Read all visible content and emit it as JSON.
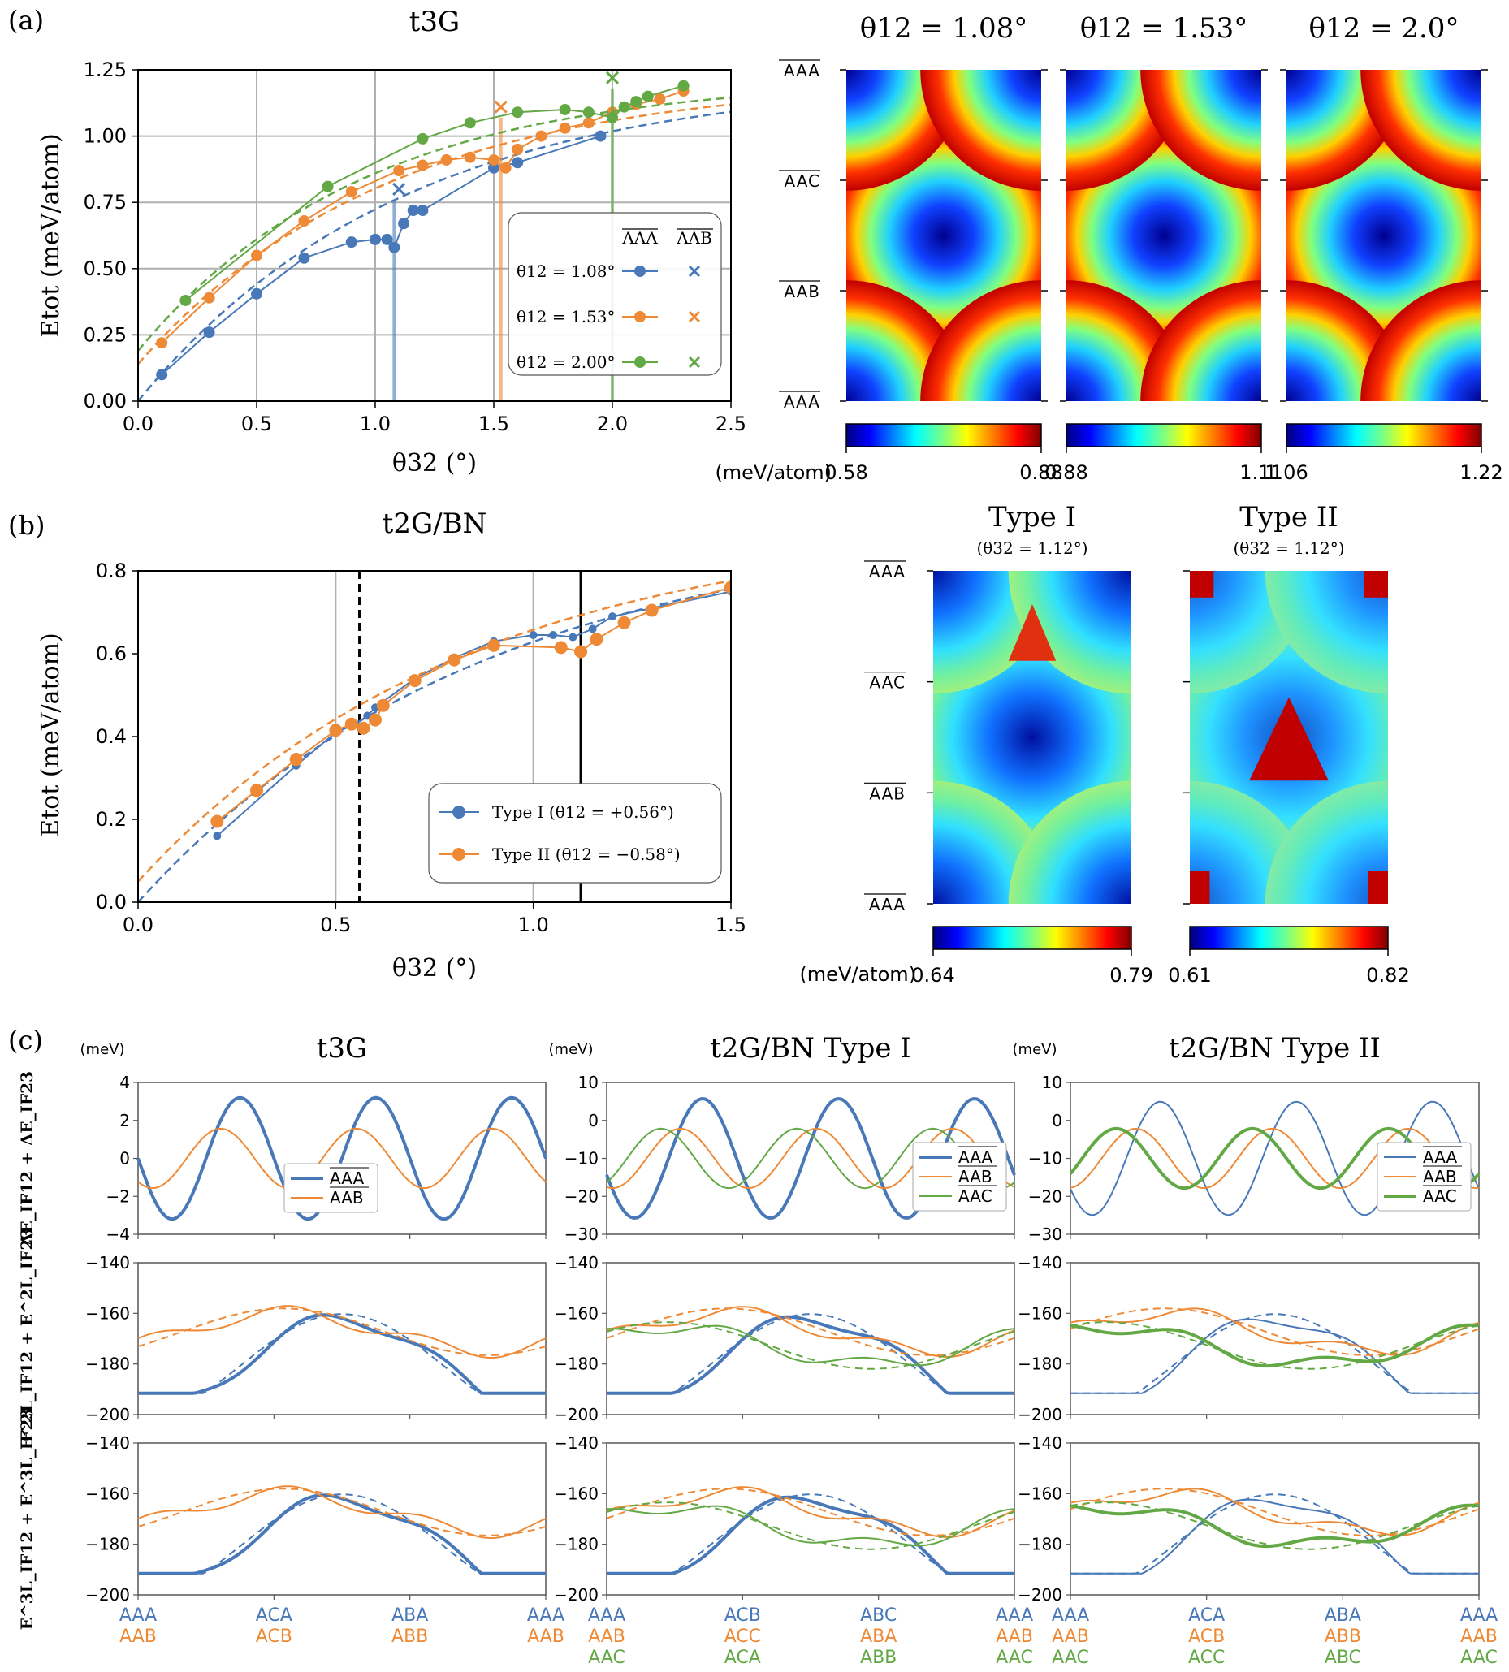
{
  "colors": {
    "blue": "#4878b8",
    "orange": "#ee8a36",
    "green": "#62a844"
  },
  "panel_labels": {
    "a": "(a)",
    "b": "(b)",
    "c": "(c)"
  },
  "chart_data": [
    {
      "id": "a_line",
      "type": "line",
      "title": "t3G",
      "xlabel": "θ32 (°)",
      "ylabel": "Etot (meV/atom)",
      "xlim": [
        0,
        2.5
      ],
      "ylim": [
        0,
        1.25
      ],
      "xticks": [
        "0.0",
        "0.5",
        "1.0",
        "1.5",
        "2.0",
        "2.5"
      ],
      "yticks": [
        "0.00",
        "0.25",
        "0.50",
        "0.75",
        "1.00",
        "1.25"
      ],
      "grid": true,
      "legend_header": [
        "AAA",
        "AAB"
      ],
      "legend": [
        "θ12 = 1.08°",
        "θ12 = 1.53°",
        "θ12 = 2.00°"
      ],
      "series": [
        {
          "name": "θ12 = 1.08°",
          "color": "blue",
          "x": [
            0.1,
            0.3,
            0.5,
            0.7,
            0.9,
            1.0,
            1.05,
            1.08,
            1.12,
            1.16,
            1.2,
            1.5,
            1.6,
            1.95
          ],
          "y": [
            0.1,
            0.26,
            0.405,
            0.54,
            0.6,
            0.61,
            0.61,
            0.58,
            0.67,
            0.72,
            0.72,
            0.88,
            0.9,
            1.0
          ],
          "cross": [
            1.1,
            0.8
          ],
          "vline": 1.08
        },
        {
          "name": "θ12 = 1.53°",
          "color": "orange",
          "x": [
            0.1,
            0.3,
            0.5,
            0.7,
            0.9,
            1.1,
            1.2,
            1.3,
            1.4,
            1.5,
            1.55,
            1.6,
            1.7,
            1.8,
            1.9,
            2.0,
            2.1,
            2.2,
            2.3
          ],
          "y": [
            0.22,
            0.39,
            0.55,
            0.68,
            0.79,
            0.87,
            0.89,
            0.91,
            0.92,
            0.91,
            0.88,
            0.95,
            1.0,
            1.03,
            1.05,
            1.09,
            1.12,
            1.14,
            1.17
          ],
          "cross": [
            1.53,
            1.11
          ],
          "vline": 1.53
        },
        {
          "name": "θ12 = 2.00°",
          "color": "green",
          "x": [
            0.2,
            0.8,
            1.2,
            1.4,
            1.6,
            1.8,
            1.9,
            2.0,
            2.05,
            2.1,
            2.15,
            2.3
          ],
          "y": [
            0.38,
            0.81,
            0.99,
            1.05,
            1.09,
            1.1,
            1.09,
            1.07,
            1.11,
            1.13,
            1.15,
            1.19
          ],
          "cross": [
            2.0,
            1.22
          ],
          "vline": 2.0
        }
      ]
    },
    {
      "id": "a_maps",
      "type": "heatmap",
      "titles": [
        "θ12 = 1.08°",
        "θ12 = 1.53°",
        "θ12 = 2.0°"
      ],
      "ylabels": [
        "AAA",
        "AAC",
        "AAB",
        "AAA"
      ],
      "cbar_unit": "(meV/atom)",
      "cbar_ranges": [
        [
          0.58,
          0.88
        ],
        [
          0.88,
          1.11
        ],
        [
          1.06,
          1.22
        ]
      ],
      "cbar_labels": [
        [
          "0.58",
          "0.88"
        ],
        [
          "0.88",
          "1.11"
        ],
        [
          "1.06",
          "1.22"
        ]
      ]
    },
    {
      "id": "b_line",
      "type": "line",
      "title": "t2G/BN",
      "xlabel": "θ32 (°)",
      "ylabel": "Etot (meV/atom)",
      "xlim": [
        0,
        1.5
      ],
      "ylim": [
        0,
        0.8
      ],
      "xticks": [
        "0.0",
        "0.5",
        "1.0",
        "1.5"
      ],
      "yticks": [
        "0.0",
        "0.2",
        "0.4",
        "0.6",
        "0.8"
      ],
      "grid": true,
      "legend": [
        "Type I (θ12 = +0.56°)",
        "Type II (θ12 = −0.58°)"
      ],
      "series": [
        {
          "name": "Type I (θ12 = +0.56°)",
          "color": "blue",
          "x": [
            0.2,
            0.4,
            0.5,
            0.55,
            0.58,
            0.6,
            0.7,
            0.8,
            0.9,
            1.0,
            1.05,
            1.1,
            1.15,
            1.2,
            1.3,
            1.5
          ],
          "y": [
            0.16,
            0.33,
            0.41,
            0.43,
            0.45,
            0.47,
            0.54,
            0.59,
            0.63,
            0.645,
            0.645,
            0.64,
            0.66,
            0.69,
            0.71,
            0.75
          ]
        },
        {
          "name": "Type II (θ12 = −0.58°)",
          "color": "orange",
          "x": [
            0.2,
            0.3,
            0.4,
            0.5,
            0.54,
            0.57,
            0.6,
            0.62,
            0.7,
            0.8,
            0.9,
            1.07,
            1.12,
            1.16,
            1.23,
            1.3,
            1.5
          ],
          "y": [
            0.195,
            0.27,
            0.345,
            0.415,
            0.43,
            0.42,
            0.44,
            0.475,
            0.535,
            0.585,
            0.62,
            0.615,
            0.605,
            0.635,
            0.675,
            0.705,
            0.76
          ]
        }
      ]
    },
    {
      "id": "b_maps",
      "type": "heatmap",
      "titles": [
        "Type I",
        "Type II"
      ],
      "subtitles": [
        "(θ32 = 1.12°)",
        "(θ32 = 1.12°)"
      ],
      "ylabels": [
        "AAA",
        "AAC",
        "AAB",
        "AAA"
      ],
      "cbar_unit": "(meV/atom)",
      "cbar_ranges": [
        [
          0.64,
          0.79
        ],
        [
          0.61,
          0.82
        ]
      ],
      "cbar_labels": [
        [
          "0.64",
          "0.79"
        ],
        [
          "0.61",
          "0.82"
        ]
      ]
    },
    {
      "id": "c_grid",
      "type": "line",
      "columns": [
        "t3G",
        "t2G/BN Type I",
        "t2G/BN Type II"
      ],
      "unit": "(meV)",
      "row_ylabels": [
        "ΔE_IF12 + ΔE_IF23",
        "E^2L_IF12 + E^2L_IF23",
        "E^3L_IF12 + E^3L_IF23"
      ],
      "row1_ylims": [
        [
          -4,
          4
        ],
        [
          -30,
          10
        ],
        [
          -30,
          10
        ]
      ],
      "row1_yticks": [
        [
          "4",
          "2",
          "0",
          "−2",
          "−4"
        ],
        [
          "10",
          "0",
          "−10",
          "−20",
          "−30"
        ],
        [
          "10",
          "0",
          "−10",
          "−20",
          "−30"
        ]
      ],
      "rowN_ylim": [
        -200,
        -140
      ],
      "rowN_yticks": [
        "−140",
        "−160",
        "−180",
        "−200"
      ],
      "legends": [
        [
          "AAA",
          "AAB"
        ],
        [
          "AAA",
          "AAB",
          "AAC"
        ],
        [
          "AAA",
          "AAB",
          "AAC"
        ]
      ],
      "xstack": [
        [
          [
            "AAA",
            "AAB"
          ],
          [
            "ACA",
            "ACB"
          ],
          [
            "ABA",
            "ABB"
          ],
          [
            "AAA",
            "AAB"
          ]
        ],
        [
          [
            "AAA",
            "AAB",
            "AAC"
          ],
          [
            "ACB",
            "ACC",
            "ACA"
          ],
          [
            "ABC",
            "ABA",
            "ABB"
          ],
          [
            "AAA",
            "AAB",
            "AAC"
          ]
        ],
        [
          [
            "AAA",
            "AAB",
            "AAC"
          ],
          [
            "ACA",
            "ACB",
            "ACC"
          ],
          [
            "ABA",
            "ABB",
            "ABC"
          ],
          [
            "AAA",
            "AAB",
            "AAC"
          ]
        ]
      ]
    }
  ]
}
